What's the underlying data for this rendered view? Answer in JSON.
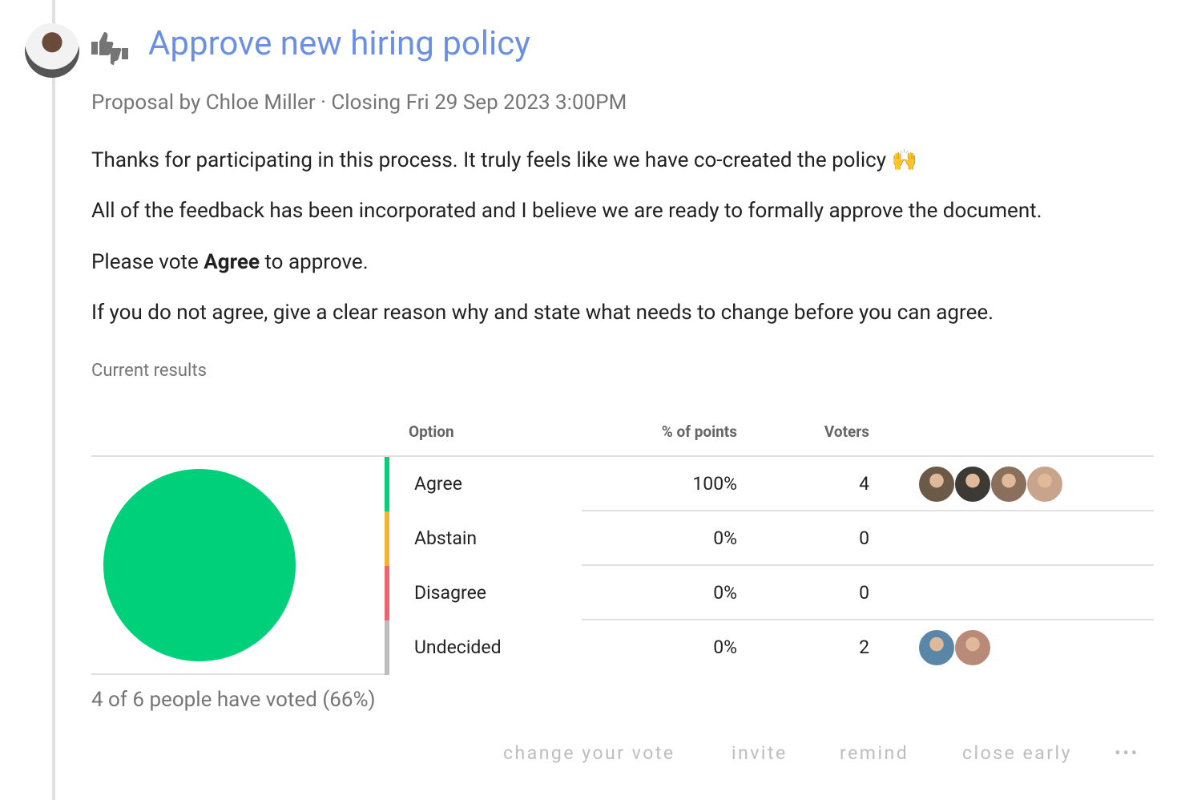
{
  "header": {
    "title": "Approve new hiring policy",
    "subtitle": "Proposal by Chloe Miller · Closing Fri 29 Sep 2023 3:00PM"
  },
  "body": {
    "paragraphs": [
      {
        "text": "Thanks for participating in this process. It truly feels like we have co-created the policy 🙌"
      },
      {
        "text": "All of the feedback has been incorporated and I believe we are ready to formally approve the document."
      },
      {
        "before": "Please vote ",
        "strong": "Agree",
        "after": " to approve."
      },
      {
        "text": "If you do not agree, give a clear reason why and state what needs to change before you can agree."
      }
    ]
  },
  "results": {
    "heading": "Current results",
    "columns": [
      "Option",
      "% of points",
      "Voters"
    ],
    "rows": [
      {
        "option": "Agree",
        "points": "100%",
        "voters": 4,
        "color": "#00d07a",
        "avatars": [
          "#6b5a48",
          "#3d3a36",
          "#8a6f5c",
          "#c9a48c"
        ]
      },
      {
        "option": "Abstain",
        "points": "0%",
        "voters": 0,
        "color": "#f5b133",
        "avatars": []
      },
      {
        "option": "Disagree",
        "points": "0%",
        "voters": 0,
        "color": "#f2636f",
        "avatars": []
      },
      {
        "option": "Undecided",
        "points": "0%",
        "voters": 2,
        "color": "#bdbdbd",
        "avatars": [
          "#5a86a8",
          "#b98a78"
        ]
      }
    ],
    "summary": "4 of 6 people have voted (66%)"
  },
  "actions": [
    "change your vote",
    "invite",
    "remind",
    "close early",
    "•••"
  ]
}
